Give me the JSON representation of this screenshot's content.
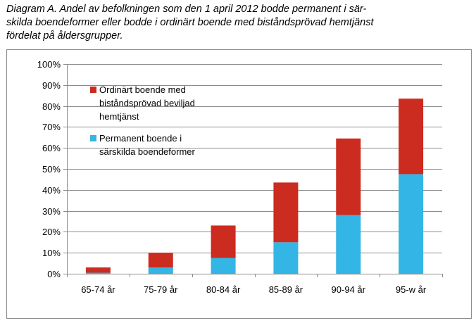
{
  "title": {
    "line1": "Diagram A. Andel av befolkningen som den 1 april 2012 bodde permanent i sär-",
    "line2": "skilda boendeformer eller bodde i ordinärt boende med biståndsprövad hemtjänst",
    "line3": "fördelat på åldersgrupper."
  },
  "chart_data": {
    "type": "bar",
    "stacked": true,
    "categories": [
      "65-74 år",
      "75-79 år",
      "80-84 år",
      "85-89 år",
      "90-94 år",
      "95-w år"
    ],
    "series": [
      {
        "name": "Permanent boende i särskilda boendeformer",
        "values": [
          0.5,
          3,
          7.5,
          15,
          28,
          47.5
        ]
      },
      {
        "name": "Ordinärt boende med biståndsprövad beviljad hemtjänst",
        "values": [
          2.5,
          7,
          15.5,
          28.5,
          36.5,
          36
        ]
      }
    ],
    "ylim": [
      0,
      100
    ],
    "yticks": [
      "0%",
      "10%",
      "20%",
      "30%",
      "40%",
      "50%",
      "60%",
      "70%",
      "80%",
      "90%",
      "100%"
    ],
    "grid": true,
    "legend_position": "top-left",
    "legend": [
      {
        "lines": [
          "Ordinärt boende med",
          "biståndsprövad beviljad",
          "hemtjänst"
        ]
      },
      {
        "lines": [
          "Permanent boende i",
          "särskilda boendeformer"
        ]
      }
    ],
    "colors": {
      "permanent": "#33b5e5",
      "ordinart": "#cc2b1f",
      "grid": "#8c8c8c"
    }
  }
}
